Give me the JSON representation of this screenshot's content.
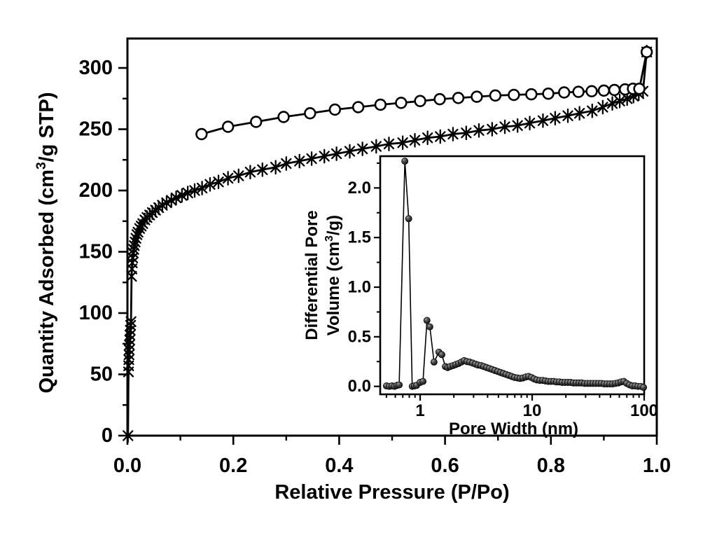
{
  "figure": {
    "kind": "scientific-figure",
    "background": "#ffffff",
    "foreground": "#000000",
    "title": ""
  },
  "colors": {
    "line": "#000000",
    "marker_fill_open": "#ffffff",
    "ball_dark": "#0a0a0a",
    "ball_highlight": "#9a9a9a"
  },
  "chart_data": [
    {
      "id": "main-isotherm",
      "type": "line-scatter",
      "title": "",
      "xlabel": "Relative Pressure (P/Po)",
      "ylabel": "Quantity Adsorbed (cm³/g STP)",
      "xscale": "linear",
      "grid": false,
      "legend": "none",
      "xlim": [
        0,
        1.0
      ],
      "ylim": [
        0,
        324
      ],
      "xticks": {
        "major": [
          0,
          0.2,
          0.4,
          0.6,
          0.8,
          1.0
        ],
        "labels": [
          "0.0",
          "0.2",
          "0.4",
          "0.6",
          "0.8",
          "1.0"
        ],
        "minor_step": 0.1
      },
      "yticks": {
        "major": [
          0,
          50,
          100,
          150,
          200,
          250,
          300
        ],
        "labels": [
          "0",
          "50",
          "100",
          "150",
          "200",
          "250",
          "300"
        ],
        "minor_step": 25
      },
      "series": [
        {
          "name": "adsorption",
          "marker": "asterisk",
          "color": "#000000",
          "x": [
            0.001,
            0.002,
            0.0023,
            0.0026,
            0.003,
            0.0034,
            0.0038,
            0.0043,
            0.0048,
            0.0054,
            0.006,
            0.0068,
            0.0078,
            0.0085,
            0.0092,
            0.01,
            0.011,
            0.012,
            0.013,
            0.0145,
            0.016,
            0.018,
            0.02,
            0.023,
            0.026,
            0.029,
            0.033,
            0.037,
            0.042,
            0.047,
            0.053,
            0.059,
            0.066,
            0.074,
            0.083,
            0.092,
            0.103,
            0.114,
            0.127,
            0.141,
            0.156,
            0.172,
            0.19,
            0.21,
            0.232,
            0.255,
            0.28,
            0.3,
            0.325,
            0.348,
            0.372,
            0.395,
            0.42,
            0.444,
            0.47,
            0.494,
            0.52,
            0.543,
            0.567,
            0.591,
            0.615,
            0.64,
            0.664,
            0.689,
            0.713,
            0.737,
            0.76,
            0.785,
            0.808,
            0.832,
            0.854,
            0.878,
            0.898,
            0.916,
            0.93,
            0.944,
            0.956,
            0.966,
            0.974,
            0.981
          ],
          "y": [
            0,
            52,
            57,
            62,
            66,
            70,
            74,
            78,
            82,
            86,
            90,
            93,
            130,
            136,
            141,
            145,
            149,
            152,
            155,
            158,
            161,
            164,
            166,
            169,
            171,
            173,
            176,
            178,
            180,
            182,
            184,
            186,
            188,
            190,
            192,
            194,
            196,
            198,
            200,
            202,
            205,
            207,
            210,
            212,
            215,
            217,
            219,
            222,
            224,
            226,
            228,
            230,
            232,
            234,
            236,
            238,
            239,
            241,
            243,
            244,
            246,
            247,
            249,
            250,
            252,
            253,
            255,
            257,
            259,
            261,
            263,
            265,
            268,
            271,
            273,
            275,
            277,
            279,
            281,
            313
          ]
        },
        {
          "name": "desorption",
          "marker": "open-circle",
          "color": "#000000",
          "x": [
            0.14,
            0.19,
            0.243,
            0.295,
            0.345,
            0.392,
            0.436,
            0.478,
            0.517,
            0.553,
            0.59,
            0.625,
            0.66,
            0.695,
            0.73,
            0.763,
            0.795,
            0.825,
            0.852,
            0.877,
            0.9,
            0.92,
            0.94,
            0.955,
            0.967,
            0.981
          ],
          "y": [
            246,
            252,
            256,
            260,
            263,
            266,
            268,
            270,
            271.5,
            273,
            274.5,
            275.5,
            276.5,
            277.5,
            278,
            278.5,
            279,
            280,
            280.5,
            281,
            281.5,
            282,
            282.5,
            283,
            283,
            313
          ]
        }
      ]
    },
    {
      "id": "inset-pore-size-distribution",
      "type": "line-scatter",
      "title": "",
      "xlabel": "Pore Width (nm)",
      "ylabel_lines": [
        "Differential Pore",
        "Volume (cm³/g)"
      ],
      "xscale": "log",
      "grid": false,
      "legend": "none",
      "xlim": [
        0.44,
        100
      ],
      "ylim": [
        -0.08,
        2.32
      ],
      "xticks": {
        "major": [
          1,
          10,
          100
        ],
        "labels": [
          "1",
          "10",
          "100"
        ],
        "minor": [
          0.5,
          0.6,
          0.7,
          0.8,
          0.9,
          2,
          3,
          4,
          5,
          6,
          7,
          8,
          9,
          20,
          30,
          40,
          50,
          60,
          70,
          80,
          90
        ]
      },
      "yticks": {
        "major": [
          0,
          0.5,
          1.0,
          1.5,
          2.0
        ],
        "labels": [
          "0.0",
          "0.5",
          "1.0",
          "1.5",
          "2.0"
        ],
        "minor_step": 0.25
      },
      "series": [
        {
          "name": "differential-pore-volume",
          "marker": "ball",
          "color": "#000000",
          "x": [
            0.5,
            0.53,
            0.56,
            0.59,
            0.62,
            0.65,
            0.73,
            0.79,
            0.85,
            0.89,
            0.93,
            1.0,
            1.06,
            1.15,
            1.22,
            1.33,
            1.47,
            1.56,
            1.68,
            1.76,
            1.85,
            1.97,
            2.08,
            2.2,
            2.33,
            2.47,
            2.62,
            2.77,
            2.94,
            3.11,
            3.29,
            3.49,
            3.7,
            3.92,
            4.15,
            4.39,
            4.65,
            4.93,
            5.22,
            5.53,
            5.86,
            6.21,
            6.57,
            6.96,
            7.38,
            7.81,
            8.28,
            8.77,
            9.29,
            9.84,
            10.4,
            11.0,
            11.7,
            12.4,
            13.1,
            13.9,
            14.7,
            15.6,
            16.5,
            17.5,
            18.5,
            19.6,
            20.8,
            22.0,
            23.3,
            24.7,
            26.2,
            27.7,
            29.4,
            31.1,
            33.0,
            34.9,
            37.0,
            39.2,
            41.5,
            44.0,
            46.6,
            49.4,
            52.3,
            55.4,
            58.7,
            62.2,
            65.9,
            69.8,
            74.0,
            78.4,
            83.0,
            88.0,
            93.2,
            98.7
          ],
          "y": [
            0.005,
            0.0,
            0.005,
            0.0,
            0.01,
            0.015,
            2.27,
            1.69,
            0.0,
            0.005,
            0.01,
            0.04,
            0.05,
            0.665,
            0.6,
            0.245,
            0.345,
            0.32,
            0.2,
            0.19,
            0.2,
            0.21,
            0.22,
            0.23,
            0.245,
            0.26,
            0.25,
            0.245,
            0.235,
            0.225,
            0.215,
            0.21,
            0.2,
            0.19,
            0.18,
            0.17,
            0.16,
            0.15,
            0.14,
            0.13,
            0.12,
            0.11,
            0.1,
            0.09,
            0.085,
            0.08,
            0.085,
            0.095,
            0.1,
            0.09,
            0.075,
            0.065,
            0.06,
            0.06,
            0.055,
            0.05,
            0.05,
            0.05,
            0.045,
            0.045,
            0.04,
            0.04,
            0.04,
            0.04,
            0.035,
            0.035,
            0.035,
            0.035,
            0.03,
            0.03,
            0.03,
            0.03,
            0.03,
            0.03,
            0.03,
            0.025,
            0.025,
            0.025,
            0.025,
            0.03,
            0.035,
            0.045,
            0.05,
            0.03,
            0.015,
            0.005,
            0.005,
            0.0,
            0.0,
            -0.01
          ]
        }
      ]
    }
  ]
}
